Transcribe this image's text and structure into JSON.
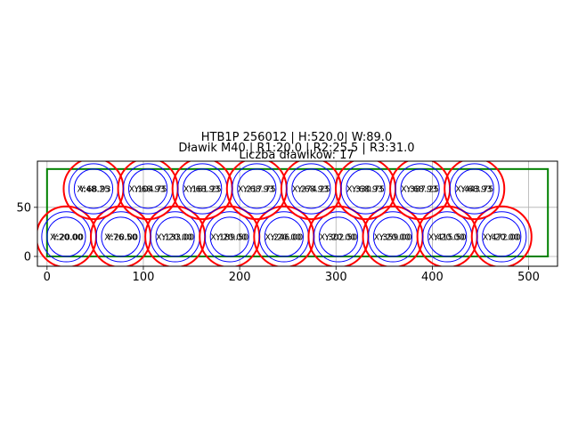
{
  "chart_data": {
    "type": "scatter",
    "title_lines": [
      "HTB1P 256012 | H:520.0| W:89.0",
      "Dławik M40 | R1:20.0 | R2:25.5 | R3:31.0",
      "Liczba dławików: 17"
    ],
    "xlabel": "",
    "ylabel": "",
    "xlim": [
      -10,
      530
    ],
    "ylim": [
      -10,
      97
    ],
    "xticks": [
      0,
      100,
      200,
      300,
      400,
      500
    ],
    "yticks": [
      0,
      50
    ],
    "grid": true,
    "rectangle": {
      "x": 0,
      "y": 0,
      "width": 520.0,
      "height": 89.0,
      "color": "#008000"
    },
    "radii": {
      "r1": 20.0,
      "r2": 25.5,
      "r3": 31.0
    },
    "circle_colors": {
      "inner": "#0000ff",
      "middle": "#0000ff",
      "outer": "#ff0000"
    },
    "points": [
      {
        "x": 20.0,
        "y": 20.0,
        "label": "X:20.00"
      },
      {
        "x": 76.5,
        "y": 20.0,
        "label": "X:76.50"
      },
      {
        "x": 133.0,
        "y": 20.0,
        "label": "X:133.00"
      },
      {
        "x": 189.5,
        "y": 20.0,
        "label": "X:189.50"
      },
      {
        "x": 246.0,
        "y": 20.0,
        "label": "X:246.00"
      },
      {
        "x": 302.5,
        "y": 20.0,
        "label": "X:302.50"
      },
      {
        "x": 359.0,
        "y": 20.0,
        "label": "X:359.00"
      },
      {
        "x": 415.5,
        "y": 20.0,
        "label": "X:415.50"
      },
      {
        "x": 472.0,
        "y": 20.0,
        "label": "X:472.00"
      },
      {
        "x": 48.25,
        "y": 68.93,
        "label": "X:48.25"
      },
      {
        "x": 104.75,
        "y": 68.93,
        "label": "X:104.75"
      },
      {
        "x": 161.25,
        "y": 68.93,
        "label": "X:161.25"
      },
      {
        "x": 217.75,
        "y": 68.93,
        "label": "X:217.75"
      },
      {
        "x": 274.25,
        "y": 68.93,
        "label": "X:274.25"
      },
      {
        "x": 330.75,
        "y": 68.93,
        "label": "X:330.75"
      },
      {
        "x": 387.25,
        "y": 68.93,
        "label": "X:387.25"
      },
      {
        "x": 443.75,
        "y": 68.93,
        "label": "X:443.75"
      }
    ],
    "point_label_y_prefix": "Y:"
  }
}
